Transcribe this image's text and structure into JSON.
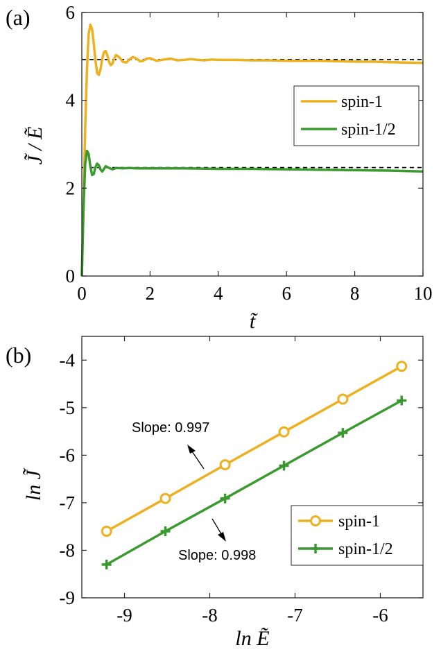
{
  "chart_data": [
    {
      "panel": "(a)",
      "type": "line",
      "xlabel": "t̃",
      "ylabel": "J̃ / Ẽ",
      "xlim": [
        0,
        10
      ],
      "ylim": [
        0,
        6
      ],
      "xticks": [
        0,
        2,
        4,
        6,
        8,
        10
      ],
      "yticks": [
        0,
        2,
        4,
        6
      ],
      "x_tick_labels": [
        "0",
        "2",
        "4",
        "6",
        "8",
        "10"
      ],
      "y_tick_labels": [
        "0",
        "2",
        "4",
        "6"
      ],
      "legend_position": "right",
      "reference_lines": [
        4.93,
        2.47
      ],
      "series": [
        {
          "name": "spin-1",
          "color": "#EDB120",
          "x": [
            0,
            0.05,
            0.1,
            0.15,
            0.2,
            0.25,
            0.3,
            0.35,
            0.4,
            0.45,
            0.5,
            0.55,
            0.6,
            0.65,
            0.7,
            0.75,
            0.8,
            0.85,
            0.9,
            0.95,
            1.0,
            1.1,
            1.2,
            1.3,
            1.4,
            1.5,
            1.6,
            1.7,
            1.8,
            1.9,
            2.0,
            2.2,
            2.4,
            2.6,
            2.8,
            3.0,
            3.2,
            3.4,
            3.6,
            3.8,
            4.0,
            4.5,
            5.0,
            5.5,
            6.0,
            6.5,
            7.0,
            7.5,
            8.0,
            8.5,
            9.0,
            9.5,
            10.0
          ],
          "y": [
            0,
            1.6,
            3.4,
            4.7,
            5.5,
            5.72,
            5.62,
            5.3,
            4.9,
            4.62,
            4.58,
            4.72,
            4.95,
            5.1,
            5.12,
            5.02,
            4.87,
            4.8,
            4.84,
            4.95,
            5.03,
            4.98,
            4.88,
            4.86,
            4.93,
            4.99,
            4.95,
            4.89,
            4.9,
            4.95,
            4.96,
            4.9,
            4.93,
            4.95,
            4.91,
            4.92,
            4.94,
            4.92,
            4.91,
            4.93,
            4.92,
            4.92,
            4.91,
            4.91,
            4.9,
            4.9,
            4.9,
            4.89,
            4.88,
            4.88,
            4.87,
            4.86,
            4.85
          ]
        },
        {
          "name": "spin-1/2",
          "color": "#3A9A2F",
          "x": [
            0,
            0.05,
            0.1,
            0.15,
            0.2,
            0.25,
            0.3,
            0.35,
            0.4,
            0.45,
            0.5,
            0.55,
            0.6,
            0.65,
            0.7,
            0.8,
            0.9,
            1.0,
            1.2,
            1.4,
            1.6,
            1.8,
            2.0,
            2.5,
            3.0,
            4.0,
            5.0,
            6.0,
            7.0,
            8.0,
            9.0,
            10.0
          ],
          "y": [
            0,
            1.6,
            2.55,
            2.85,
            2.78,
            2.5,
            2.3,
            2.32,
            2.48,
            2.56,
            2.52,
            2.42,
            2.38,
            2.44,
            2.5,
            2.46,
            2.43,
            2.46,
            2.45,
            2.46,
            2.45,
            2.45,
            2.45,
            2.45,
            2.45,
            2.44,
            2.44,
            2.43,
            2.42,
            2.41,
            2.4,
            2.38
          ]
        }
      ]
    },
    {
      "panel": "(b)",
      "type": "line",
      "xlabel": "ln Ẽ",
      "ylabel": "ln J̃",
      "xlim": [
        -9.5,
        -5.5
      ],
      "ylim": [
        -9,
        -3.5
      ],
      "xticks": [
        -9,
        -8,
        -7,
        -6
      ],
      "yticks": [
        -9,
        -8,
        -7,
        -6,
        -5,
        -4
      ],
      "x_tick_labels": [
        "-9",
        "-8",
        "-7",
        "-6"
      ],
      "y_tick_labels": [
        "-9",
        "-8",
        "-7",
        "-6",
        "-5",
        "-4"
      ],
      "legend_position": "bottom-right",
      "annotations": [
        {
          "text": "Slope: 0.997",
          "arrow": "up-left"
        },
        {
          "text": "Slope: 0.998",
          "arrow": "down-right"
        }
      ],
      "series": [
        {
          "name": "spin-1",
          "color": "#EDB120",
          "marker": "circle",
          "x": [
            -9.21,
            -8.52,
            -7.82,
            -7.13,
            -6.44,
            -5.75
          ],
          "y": [
            -7.6,
            -6.91,
            -6.2,
            -5.51,
            -4.82,
            -4.13
          ]
        },
        {
          "name": "spin-1/2",
          "color": "#3A9A2F",
          "marker": "plus",
          "x": [
            -9.21,
            -8.52,
            -7.82,
            -7.13,
            -6.44,
            -5.75
          ],
          "y": [
            -8.3,
            -7.6,
            -6.91,
            -6.22,
            -5.53,
            -4.85
          ]
        }
      ]
    }
  ]
}
